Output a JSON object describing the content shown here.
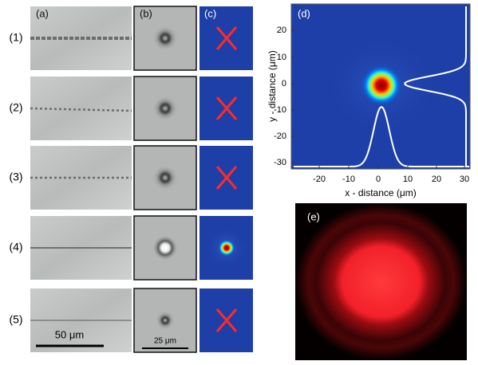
{
  "row_labels": [
    "(1)",
    "(2)",
    "(3)",
    "(4)",
    "(5)"
  ],
  "panel_labels": [
    "(a)",
    "(b)",
    "(c)",
    "(d)",
    "(e)"
  ],
  "scale_bars": {
    "a": "50 μm",
    "b": "25 μm"
  },
  "panel_d": {
    "x_label": "x - distance (μm)",
    "y_label": "y - distance (μm)",
    "xticks": [
      "-20",
      "-10",
      "0",
      "10",
      "20",
      "30"
    ],
    "yticks": [
      "20",
      "10",
      "0",
      "-10",
      "-20",
      "-30"
    ]
  }
}
